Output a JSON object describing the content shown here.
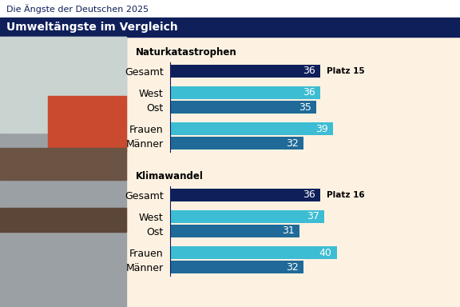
{
  "header": "Die Ängste der Deutschen 2025",
  "title": "Umweltängste im Vergleich",
  "chart_data": [
    {
      "type": "bar",
      "orientation": "horizontal",
      "title": "Naturkatastrophen",
      "categories": [
        "Gesamt",
        "West",
        "Ost",
        "Frauen",
        "Männer"
      ],
      "values": [
        36,
        36,
        35,
        39,
        32
      ],
      "colors": [
        "#0f1f5a",
        "#3cbdd3",
        "#1f6a98",
        "#3cbdd3",
        "#1f6a98"
      ],
      "annotation": "Platz 15",
      "xlim": [
        0,
        68
      ],
      "tick_labels": "y",
      "data_labels": true
    },
    {
      "type": "bar",
      "orientation": "horizontal",
      "title": "Klimawandel",
      "categories": [
        "Gesamt",
        "West",
        "Ost",
        "Frauen",
        "Männer"
      ],
      "values": [
        36,
        37,
        31,
        40,
        32
      ],
      "colors": [
        "#0f1f5a",
        "#3cbdd3",
        "#1f6a98",
        "#3cbdd3",
        "#1f6a98"
      ],
      "annotation": "Platz 16",
      "xlim": [
        0,
        68
      ],
      "tick_labels": "y",
      "data_labels": true
    }
  ]
}
